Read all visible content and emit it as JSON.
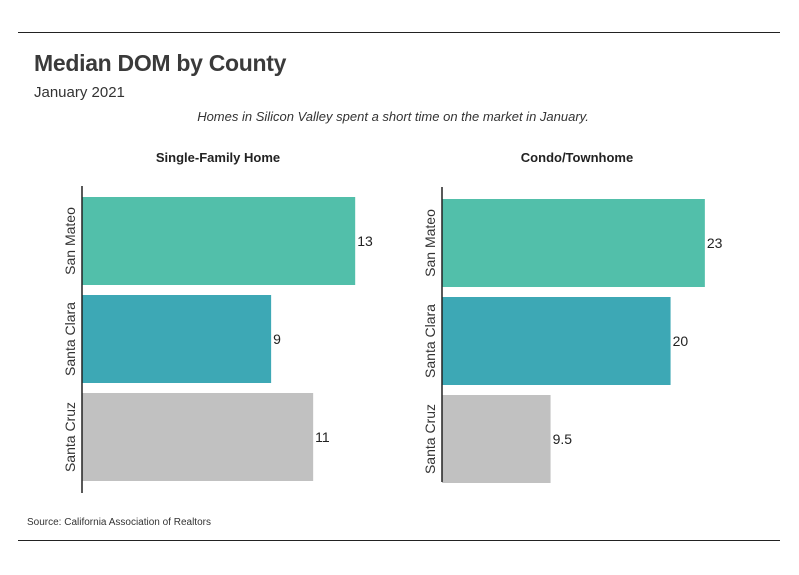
{
  "title": "Median DOM by County",
  "subtitle": "January 2021",
  "caption": "Homes in Silicon Valley spent a short time on the market in January.",
  "source": "Source:  California Association of Realtors",
  "colors": {
    "San Mateo": "#52bfaa",
    "Santa Clara": "#3da8b5",
    "Santa Cruz": "#c1c1c1",
    "axis": "#222222"
  },
  "chart_data": [
    {
      "type": "bar",
      "orientation": "horizontal",
      "title": "Single-Family Home",
      "categories": [
        "San Mateo",
        "Santa Clara",
        "Santa Cruz"
      ],
      "values": [
        13,
        9,
        11
      ],
      "value_labels": [
        "13",
        "9",
        "11"
      ],
      "xlim": [
        0,
        13.8
      ],
      "grid": false
    },
    {
      "type": "bar",
      "orientation": "horizontal",
      "title": "Condo/Townhome",
      "categories": [
        "San Mateo",
        "Santa Clara",
        "Santa Cruz"
      ],
      "values": [
        23,
        20,
        9.5
      ],
      "value_labels": [
        "23",
        "20",
        "9.5"
      ],
      "xlim": [
        0,
        24.5
      ],
      "grid": false
    }
  ]
}
